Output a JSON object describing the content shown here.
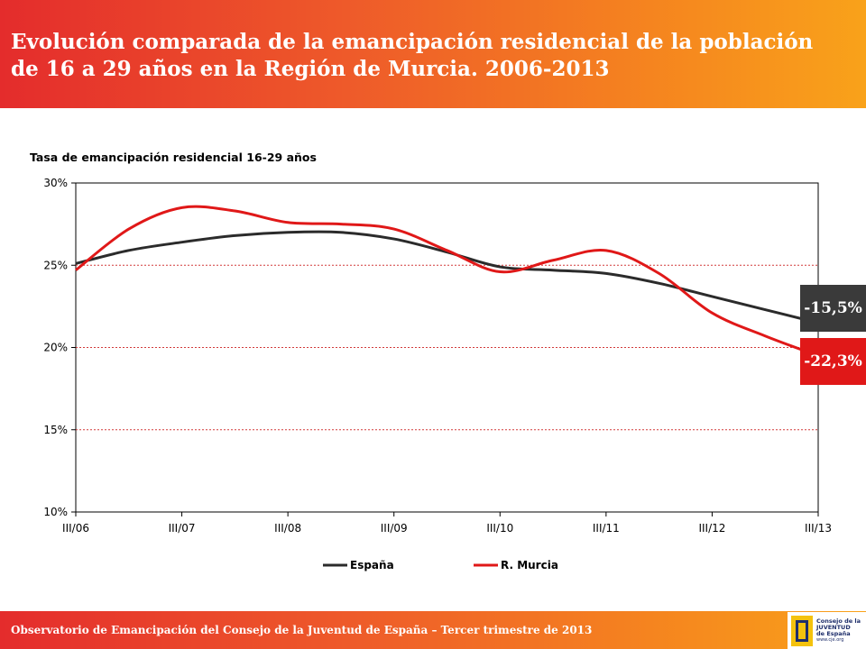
{
  "header": {
    "title": "Evolución comparada de la emancipación residencial de la población de 16 a 29 años en la Región de Murcia. 2006-2013"
  },
  "chart_data": {
    "type": "line",
    "title": "Tasa de emancipación residencial 16-29 años",
    "categories": [
      "III/06",
      "III/07",
      "III/08",
      "III/09",
      "III/10",
      "III/11",
      "III/12",
      "III/13"
    ],
    "ylim": [
      0.1,
      0.3
    ],
    "yticks": [
      "10%",
      "15%",
      "20%",
      "25%",
      "30%"
    ],
    "grid": true,
    "legend_position": "bottom",
    "series": [
      {
        "name": "España",
        "color": "#2b2b2b",
        "x": [
          0,
          0.5,
          1,
          1.5,
          2,
          2.5,
          3,
          3.5,
          4,
          4.5,
          5,
          5.5,
          6,
          6.5,
          7
        ],
        "values": [
          0.251,
          0.259,
          0.264,
          0.268,
          0.27,
          0.27,
          0.266,
          0.258,
          0.249,
          0.247,
          0.245,
          0.239,
          0.231,
          0.223,
          0.215
        ]
      },
      {
        "name": "R. Murcia",
        "color": "#e01818",
        "x": [
          0,
          0.5,
          1,
          1.5,
          2,
          2.5,
          3,
          3.5,
          4,
          4.5,
          5,
          5.5,
          6,
          6.5,
          7
        ],
        "values": [
          0.247,
          0.272,
          0.285,
          0.283,
          0.276,
          0.275,
          0.272,
          0.259,
          0.246,
          0.253,
          0.259,
          0.245,
          0.221,
          0.207,
          0.195
        ]
      }
    ]
  },
  "badges": {
    "espana": "-15,5%",
    "murcia": "-22,3%"
  },
  "footer": {
    "text": "Observatorio de Emancipación del Consejo de la Juventud de España – Tercer trimestre de 2013"
  },
  "logo": {
    "line1": "Consejo de la",
    "line2": "JUVENTUD",
    "line3": "de España",
    "url": "www.cje.org"
  }
}
